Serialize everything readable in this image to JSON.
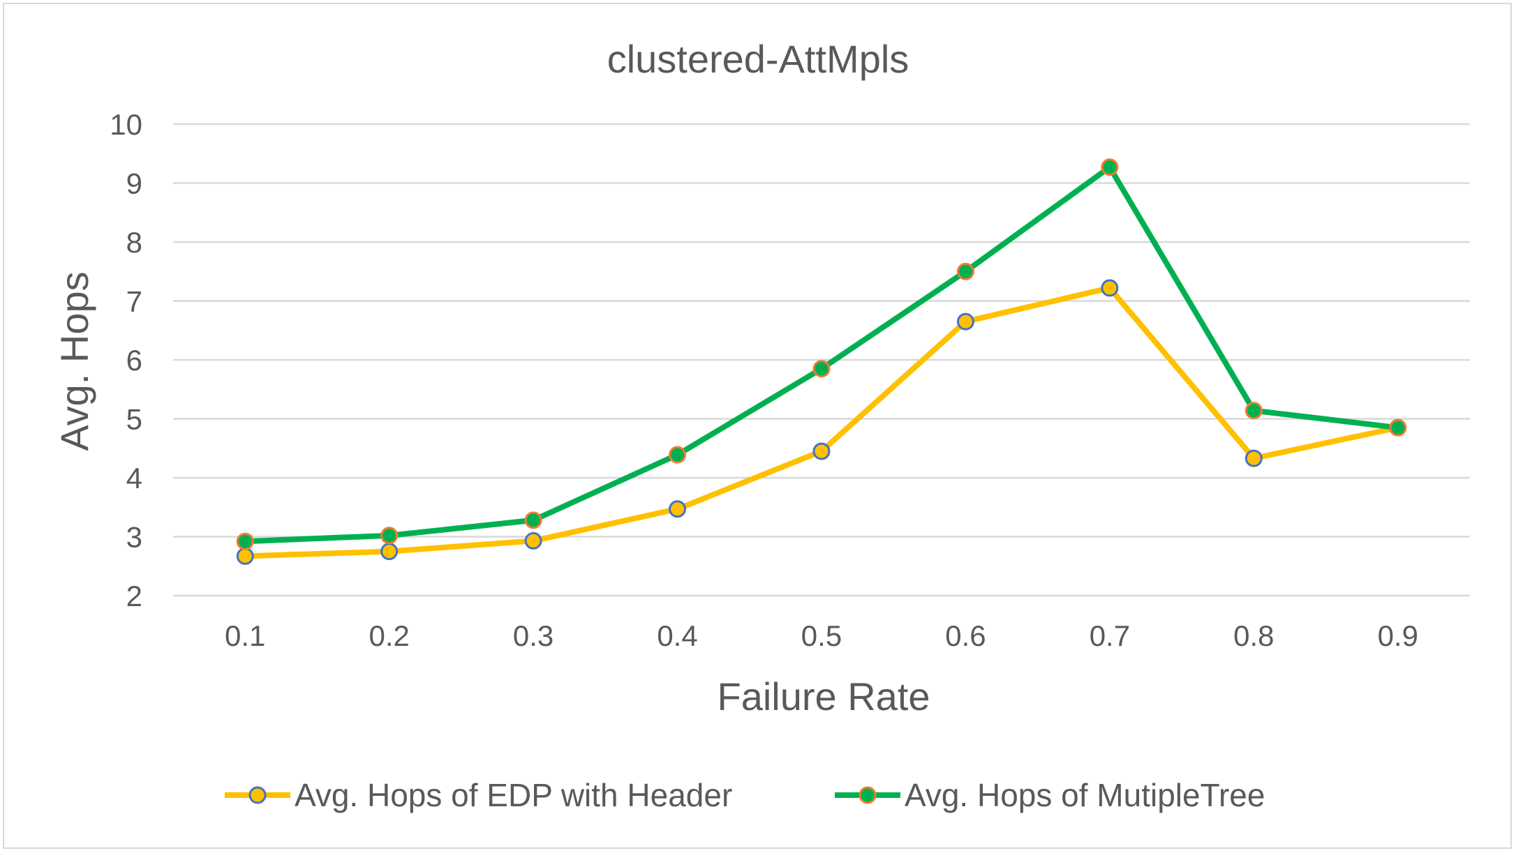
{
  "chart_data": {
    "type": "line",
    "title": "clustered-AttMpls",
    "xlabel": "Failure Rate",
    "ylabel": "Avg. Hops",
    "categories": [
      "0.1",
      "0.2",
      "0.3",
      "0.4",
      "0.5",
      "0.6",
      "0.7",
      "0.8",
      "0.9"
    ],
    "ylim": [
      2,
      10
    ],
    "yticks": [
      "2",
      "3",
      "4",
      "5",
      "6",
      "7",
      "8",
      "9",
      "10"
    ],
    "grid": true,
    "legend_position": "bottom",
    "series": [
      {
        "name": "Avg. Hops of EDP with Header",
        "color": "#ffc000",
        "marker_edge": "#4472c4",
        "values": [
          2.67,
          2.75,
          2.93,
          3.47,
          4.45,
          6.65,
          7.22,
          4.33,
          4.85
        ]
      },
      {
        "name": "Avg. Hops of MutipleTree",
        "color": "#00b050",
        "marker_edge": "#ed7d31",
        "values": [
          2.92,
          3.02,
          3.28,
          4.39,
          5.85,
          7.5,
          9.27,
          5.14,
          4.85
        ]
      }
    ]
  }
}
